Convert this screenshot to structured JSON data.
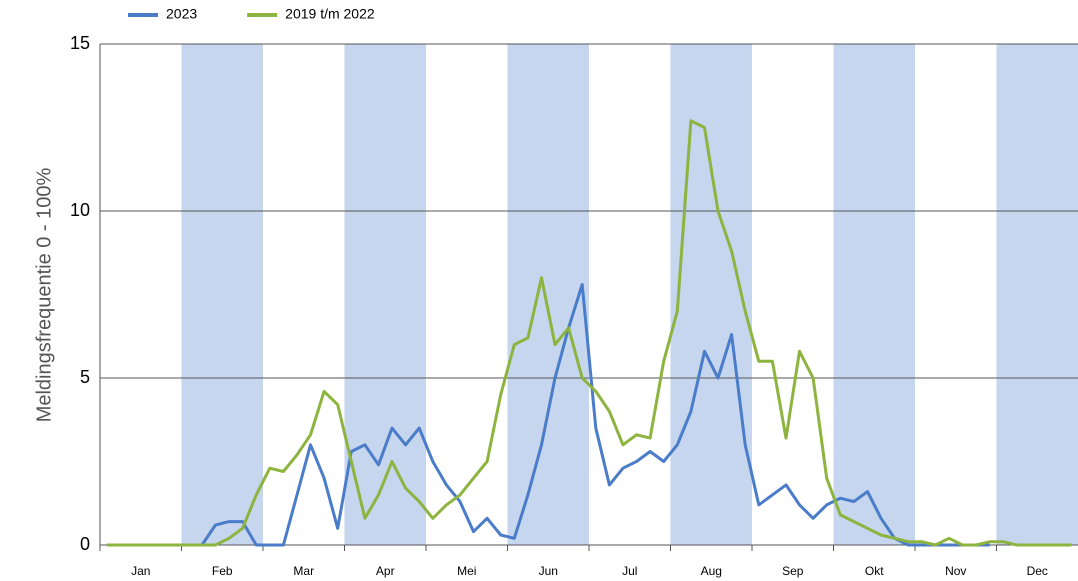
{
  "chart_data": {
    "type": "line",
    "y_label": "Meldingsfrequentie 0 - 100%",
    "categories": [
      null,
      null,
      null,
      "Jan",
      null,
      null,
      null,
      null,
      null,
      "Feb",
      null,
      null,
      null,
      null,
      null,
      "Mar",
      null,
      null,
      null,
      null,
      null,
      "Apr",
      null,
      null,
      null,
      null,
      null,
      "Mei",
      null,
      null,
      null,
      null,
      null,
      "Jun",
      null,
      null,
      null,
      null,
      null,
      "Jul",
      null,
      null,
      null,
      null,
      null,
      "Aug",
      null,
      null,
      null,
      null,
      null,
      "Sep",
      null,
      null,
      null,
      null,
      null,
      "Okt",
      null,
      null,
      null,
      null,
      null,
      "Nov",
      null,
      null,
      null,
      null,
      null,
      "Dec",
      null,
      null
    ],
    "series": [
      {
        "name": "2023",
        "color": "#4a7cc9",
        "values": [
          0,
          0,
          0,
          0,
          0,
          0,
          0,
          0,
          0.6,
          0.7,
          0.7,
          0,
          0,
          0,
          1.5,
          3,
          2,
          0.5,
          2.8,
          3,
          2.4,
          3.5,
          3,
          3.5,
          2.5,
          1.8,
          1.3,
          0.4,
          0.8,
          0.3,
          0.2,
          1.5,
          3,
          5,
          6.5,
          7.8,
          3.5,
          1.8,
          2.3,
          2.5,
          2.8,
          2.5,
          3,
          4,
          5.8,
          5,
          6.3,
          3,
          1.2,
          1.5,
          1.8,
          1.2,
          0.8,
          1.2,
          1.4,
          1.3,
          1.6,
          0.8,
          0.2,
          0,
          0,
          0,
          0,
          0,
          0,
          0,
          null,
          null,
          null,
          null,
          null,
          null
        ]
      },
      {
        "name": "2019 t/m 2022",
        "color": "#8db43f",
        "values": [
          0,
          0,
          0,
          0,
          0,
          0,
          0,
          0,
          0,
          0.2,
          0.5,
          1.5,
          2.3,
          2.2,
          2.7,
          3.3,
          4.6,
          4.2,
          2.5,
          0.8,
          1.5,
          2.5,
          1.7,
          1.3,
          0.8,
          1.2,
          1.5,
          2,
          2.5,
          4.5,
          6,
          6.2,
          8,
          6,
          6.5,
          5,
          4.6,
          4,
          3,
          3.3,
          3.2,
          5.5,
          7,
          12.7,
          12.5,
          10,
          8.8,
          7,
          5.5,
          5.5,
          3.2,
          5.8,
          5,
          2,
          0.9,
          0.7,
          0.5,
          0.3,
          0.2,
          0.1,
          0.1,
          0,
          0.2,
          0,
          0,
          0.1,
          0.1,
          0,
          0,
          0,
          0,
          0
        ]
      }
    ],
    "ylim": [
      0,
      15
    ],
    "yticks": [
      0,
      5,
      10,
      15
    ],
    "grid": true
  }
}
